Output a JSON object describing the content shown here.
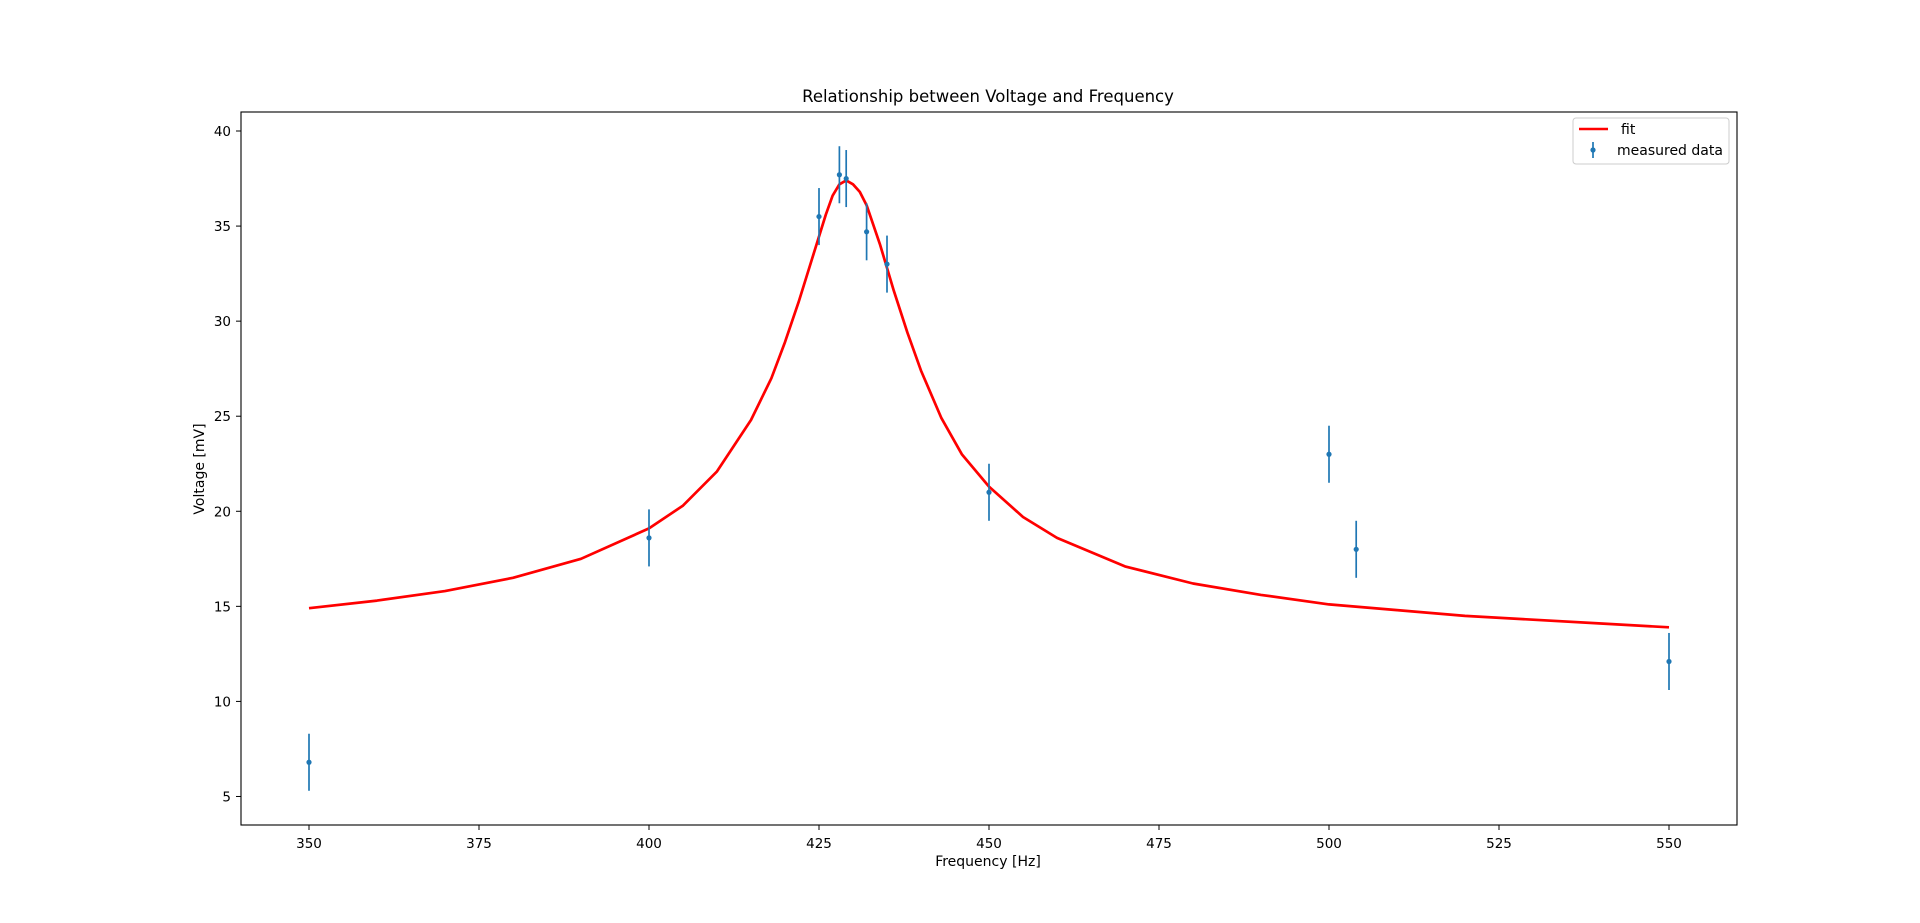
{
  "chart_data": {
    "type": "scatter",
    "title": "Relationship between Voltage and Frequency",
    "xlabel": "Frequency [Hz]",
    "ylabel": "Voltage [mV]",
    "xlim": [
      340,
      560
    ],
    "ylim": [
      3.5,
      41
    ],
    "xticks": [
      350,
      375,
      400,
      425,
      450,
      475,
      500,
      525,
      550
    ],
    "yticks": [
      5,
      10,
      15,
      20,
      25,
      30,
      35,
      40
    ],
    "grid": false,
    "legend_position": "top-right",
    "legend": [
      {
        "label": "fit",
        "kind": "line",
        "color": "#ff0000"
      },
      {
        "label": "measured data",
        "kind": "errorbar",
        "color": "#1f77b4"
      }
    ],
    "series": [
      {
        "name": "measured data",
        "kind": "errorbar",
        "color": "#1f77b4",
        "x": [
          350,
          400,
          425,
          428,
          429,
          432,
          435,
          450,
          500,
          504,
          550
        ],
        "y": [
          6.8,
          18.6,
          35.5,
          37.7,
          37.5,
          34.7,
          33.0,
          21.0,
          23.0,
          18.0,
          12.1
        ],
        "yerr": [
          1.5,
          1.5,
          1.5,
          1.5,
          1.5,
          1.5,
          1.5,
          1.5,
          1.5,
          1.5,
          1.5
        ]
      },
      {
        "name": "fit",
        "kind": "line",
        "color": "#ff0000",
        "x": [
          350,
          360,
          370,
          380,
          390,
          400,
          405,
          410,
          415,
          418,
          420,
          422,
          424,
          426,
          427,
          428,
          429,
          430,
          431,
          432,
          434,
          436,
          438,
          440,
          443,
          446,
          450,
          455,
          460,
          470,
          480,
          490,
          500,
          510,
          520,
          530,
          540,
          550
        ],
        "y": [
          14.9,
          15.3,
          15.8,
          16.5,
          17.5,
          19.1,
          20.3,
          22.1,
          24.8,
          27.0,
          28.9,
          31.0,
          33.3,
          35.6,
          36.6,
          37.2,
          37.4,
          37.2,
          36.8,
          36.1,
          34.0,
          31.6,
          29.4,
          27.4,
          24.9,
          23.0,
          21.3,
          19.7,
          18.6,
          17.1,
          16.2,
          15.6,
          15.1,
          14.8,
          14.5,
          14.3,
          14.1,
          13.9
        ]
      }
    ]
  }
}
